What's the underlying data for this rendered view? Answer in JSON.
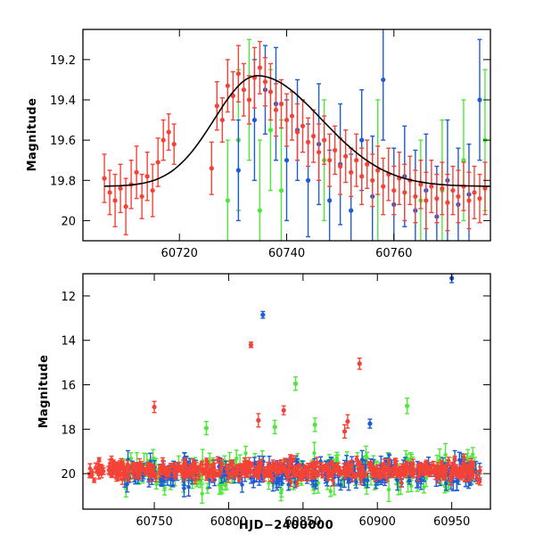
{
  "colors": {
    "red": "#f44336",
    "blue": "#1e5bd8",
    "green": "#4fe83a",
    "model": "#000000"
  },
  "chart_data": [
    {
      "type": "scatter",
      "name": "zoom-panel",
      "title": "",
      "xlabel": "",
      "ylabel": "Magnitude",
      "xlim": [
        60702,
        60778
      ],
      "ylim": [
        19.05,
        20.1
      ],
      "y_inverted": true,
      "x_ticks": [
        60720,
        60740,
        60760
      ],
      "y_ticks": [
        19.2,
        19.4,
        19.6,
        19.8,
        20
      ],
      "y_tick_labels": [
        "19.2",
        "19.4",
        "19.6",
        "19.8",
        "20"
      ],
      "model_curve": {
        "type": "line",
        "color": "black",
        "peak_x": 60734.5,
        "peak_mag": 19.28,
        "baseline_mag": 19.83,
        "rise_timescale": 8,
        "decay_timescale": 12
      },
      "series": [
        {
          "name": "red",
          "color": "red",
          "points": [
            [
              60706,
              19.79,
              0.12
            ],
            [
              60707,
              19.86,
              0.11
            ],
            [
              60708,
              19.9,
              0.13
            ],
            [
              60709,
              19.84,
              0.12
            ],
            [
              60710,
              19.93,
              0.14
            ],
            [
              60711,
              19.82,
              0.12
            ],
            [
              60712,
              19.76,
              0.13
            ],
            [
              60713,
              19.88,
              0.11
            ],
            [
              60714,
              19.78,
              0.12
            ],
            [
              60715,
              19.85,
              0.13
            ],
            [
              60716,
              19.71,
              0.12
            ],
            [
              60717,
              19.6,
              0.1
            ],
            [
              60718,
              19.56,
              0.09
            ],
            [
              60719,
              19.62,
              0.1
            ],
            [
              60726,
              19.74,
              0.13
            ],
            [
              60727,
              19.43,
              0.12
            ],
            [
              60728,
              19.5,
              0.11
            ],
            [
              60729,
              19.33,
              0.13
            ],
            [
              60730,
              19.38,
              0.12
            ],
            [
              60731,
              19.27,
              0.14
            ],
            [
              60732,
              19.35,
              0.13
            ],
            [
              60733,
              19.4,
              0.12
            ],
            [
              60734,
              19.29,
              0.15
            ],
            [
              60735,
              19.24,
              0.13
            ],
            [
              60736,
              19.31,
              0.12
            ],
            [
              60737,
              19.36,
              0.14
            ],
            [
              60738,
              19.45,
              0.13
            ],
            [
              60739,
              19.42,
              0.12
            ],
            [
              60740,
              19.5,
              0.13
            ],
            [
              60741,
              19.48,
              0.12
            ],
            [
              60742,
              19.56,
              0.14
            ],
            [
              60743,
              19.53,
              0.13
            ],
            [
              60744,
              19.61,
              0.12
            ],
            [
              60745,
              19.58,
              0.13
            ],
            [
              60746,
              19.66,
              0.14
            ],
            [
              60747,
              19.6,
              0.12
            ],
            [
              60748,
              19.7,
              0.13
            ],
            [
              60749,
              19.65,
              0.12
            ],
            [
              60750,
              19.73,
              0.14
            ],
            [
              60751,
              19.68,
              0.13
            ],
            [
              60752,
              19.76,
              0.12
            ],
            [
              60753,
              19.7,
              0.13
            ],
            [
              60754,
              19.78,
              0.14
            ],
            [
              60755,
              19.72,
              0.12
            ],
            [
              60756,
              19.8,
              0.13
            ],
            [
              60757,
              19.75,
              0.12
            ],
            [
              60758,
              19.83,
              0.14
            ],
            [
              60759,
              19.77,
              0.13
            ],
            [
              60760,
              19.85,
              0.12
            ],
            [
              60761,
              19.79,
              0.13
            ],
            [
              60762,
              19.86,
              0.14
            ],
            [
              60763,
              19.8,
              0.12
            ],
            [
              60764,
              19.88,
              0.13
            ],
            [
              60765,
              19.82,
              0.12
            ],
            [
              60766,
              19.9,
              0.14
            ],
            [
              60767,
              19.83,
              0.13
            ],
            [
              60768,
              19.89,
              0.12
            ],
            [
              60769,
              19.84,
              0.13
            ],
            [
              60770,
              19.91,
              0.14
            ],
            [
              60771,
              19.85,
              0.12
            ],
            [
              60772,
              19.88,
              0.13
            ],
            [
              60773,
              19.83,
              0.12
            ],
            [
              60774,
              19.9,
              0.14
            ],
            [
              60775,
              19.86,
              0.13
            ],
            [
              60776,
              19.89,
              0.12
            ],
            [
              60777,
              19.84,
              0.13
            ]
          ]
        },
        {
          "name": "blue",
          "color": "blue",
          "points": [
            [
              60731,
              19.75,
              0.25
            ],
            [
              60734,
              19.5,
              0.3
            ],
            [
              60736,
              19.35,
              0.22
            ],
            [
              60738,
              19.42,
              0.28
            ],
            [
              60740,
              19.7,
              0.3
            ],
            [
              60742,
              19.55,
              0.25
            ],
            [
              60744,
              19.8,
              0.28
            ],
            [
              60746,
              19.62,
              0.3
            ],
            [
              60748,
              19.9,
              0.25
            ],
            [
              60750,
              19.72,
              0.3
            ],
            [
              60752,
              19.95,
              0.28
            ],
            [
              60754,
              19.6,
              0.25
            ],
            [
              60756,
              19.88,
              0.3
            ],
            [
              60758,
              19.3,
              0.3
            ],
            [
              60760,
              19.92,
              0.28
            ],
            [
              60762,
              19.78,
              0.25
            ],
            [
              60764,
              19.95,
              0.3
            ],
            [
              60766,
              19.85,
              0.28
            ],
            [
              60768,
              19.98,
              0.25
            ],
            [
              60770,
              19.8,
              0.3
            ],
            [
              60772,
              19.92,
              0.28
            ],
            [
              60774,
              19.87,
              0.25
            ],
            [
              60776,
              19.4,
              0.3
            ]
          ]
        },
        {
          "name": "green",
          "color": "green",
          "points": [
            [
              60729,
              19.9,
              0.3
            ],
            [
              60731,
              19.6,
              0.35
            ],
            [
              60733,
              19.4,
              0.3
            ],
            [
              60735,
              19.95,
              0.35
            ],
            [
              60737,
              19.55,
              0.3
            ],
            [
              60739,
              19.85,
              0.35
            ],
            [
              60747,
              19.7,
              0.3
            ],
            [
              60757,
              19.75,
              0.35
            ],
            [
              60765,
              19.9,
              0.3
            ],
            [
              60769,
              19.85,
              0.35
            ],
            [
              60773,
              19.7,
              0.3
            ],
            [
              60777,
              19.6,
              0.35
            ]
          ]
        }
      ]
    },
    {
      "type": "scatter",
      "name": "full-panel",
      "title": "",
      "xlabel": "HJD−2400000",
      "ylabel": "Magnitude",
      "xlim": [
        60702,
        60976
      ],
      "ylim": [
        11,
        21.6
      ],
      "y_inverted": true,
      "x_ticks": [
        60750,
        60800,
        60850,
        60900,
        60950
      ],
      "y_ticks": [
        12,
        14,
        16,
        18,
        20
      ],
      "y_tick_labels": [
        "12",
        "14",
        "16",
        "18",
        "20"
      ],
      "outliers": [
        {
          "color": "blue",
          "x": 60950,
          "mag": 11.2,
          "err": 0.2
        },
        {
          "color": "blue",
          "x": 60823,
          "mag": 12.85,
          "err": 0.15
        },
        {
          "color": "red",
          "x": 60815,
          "mag": 14.2,
          "err": 0.12
        },
        {
          "color": "red",
          "x": 60888,
          "mag": 15.05,
          "err": 0.25
        },
        {
          "color": "red",
          "x": 60750,
          "mag": 17.0,
          "err": 0.25
        },
        {
          "color": "red",
          "x": 60837,
          "mag": 17.15,
          "err": 0.2
        },
        {
          "color": "red",
          "x": 60820,
          "mag": 17.6,
          "err": 0.3
        },
        {
          "color": "red",
          "x": 60880,
          "mag": 17.65,
          "err": 0.3
        },
        {
          "color": "red",
          "x": 60878,
          "mag": 18.1,
          "err": 0.3
        },
        {
          "color": "green",
          "x": 60845,
          "mag": 15.95,
          "err": 0.3
        },
        {
          "color": "green",
          "x": 60920,
          "mag": 16.95,
          "err": 0.35
        },
        {
          "color": "blue",
          "x": 60895,
          "mag": 17.75,
          "err": 0.2
        },
        {
          "color": "green",
          "x": 60858,
          "mag": 17.8,
          "err": 0.3
        },
        {
          "color": "green",
          "x": 60831,
          "mag": 17.9,
          "err": 0.3
        },
        {
          "color": "green",
          "x": 60785,
          "mag": 17.95,
          "err": 0.3
        }
      ],
      "dense_band": {
        "red": {
          "x_range": [
            60706,
            60970
          ],
          "mag_center": 19.85,
          "mag_scatter": 0.35,
          "err": 0.15,
          "count": 520
        },
        "blue": {
          "x_range": [
            60728,
            60970
          ],
          "mag_center": 19.95,
          "mag_scatter": 0.45,
          "err": 0.3,
          "count": 260
        },
        "green": {
          "x_range": [
            60728,
            60970
          ],
          "mag_center": 19.95,
          "mag_scatter": 0.6,
          "err": 0.35,
          "count": 200
        }
      }
    }
  ]
}
